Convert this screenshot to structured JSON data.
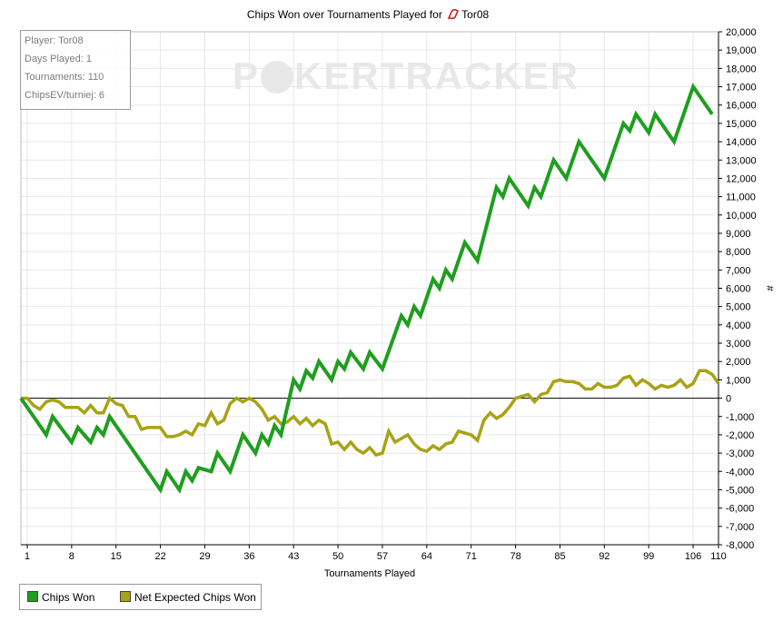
{
  "title_prefix": "Chips Won over Tournaments Played for",
  "player_name": "Tor08",
  "watermark": "POKERTRACKER",
  "info": {
    "player": "Player: Tor08",
    "days": "Days Played: 1",
    "tournaments": "Tournaments: 110",
    "chipsev": "ChipsEV/turniej: 6"
  },
  "legend": {
    "chips_won": "Chips Won",
    "net_expected": "Net Expected Chips Won"
  },
  "colors": {
    "chips_won": "#1f9e1f",
    "net_expected": "#a7a315",
    "grid": "#e8e8e8",
    "badge": "#cc2222"
  },
  "chart_data": {
    "type": "line",
    "xlabel": "Tournaments Played",
    "ylabel": "#",
    "xlim": [
      0,
      110
    ],
    "ylim": [
      -8000,
      20000
    ],
    "xticks": [
      1,
      8,
      15,
      22,
      29,
      36,
      43,
      50,
      57,
      64,
      71,
      78,
      85,
      92,
      99,
      106,
      110
    ],
    "yticks_step": 1000,
    "grid": true,
    "legend_position": "bottom-left",
    "series": [
      {
        "name": "Chips Won",
        "points": [
          [
            0,
            0
          ],
          [
            4,
            -2000
          ],
          [
            5,
            -1000
          ],
          [
            8,
            -2400
          ],
          [
            9,
            -1600
          ],
          [
            11,
            -2400
          ],
          [
            12,
            -1600
          ],
          [
            13,
            -2000
          ],
          [
            14,
            -1000
          ],
          [
            22,
            -5000
          ],
          [
            23,
            -4000
          ],
          [
            25,
            -5000
          ],
          [
            26,
            -4000
          ],
          [
            27,
            -4500
          ],
          [
            28,
            -3800
          ],
          [
            30,
            -4000
          ],
          [
            31,
            -3000
          ],
          [
            33,
            -4000
          ],
          [
            35,
            -2000
          ],
          [
            37,
            -3000
          ],
          [
            38,
            -2000
          ],
          [
            39,
            -2500
          ],
          [
            40,
            -1500
          ],
          [
            41,
            -2000
          ],
          [
            43,
            1000
          ],
          [
            44,
            500
          ],
          [
            45,
            1500
          ],
          [
            46,
            1100
          ],
          [
            47,
            2000
          ],
          [
            49,
            1000
          ],
          [
            50,
            2000
          ],
          [
            51,
            1600
          ],
          [
            52,
            2500
          ],
          [
            54,
            1600
          ],
          [
            55,
            2500
          ],
          [
            57,
            1600
          ],
          [
            60,
            4500
          ],
          [
            61,
            4000
          ],
          [
            62,
            5000
          ],
          [
            63,
            4500
          ],
          [
            65,
            6500
          ],
          [
            66,
            6000
          ],
          [
            67,
            7000
          ],
          [
            68,
            6500
          ],
          [
            70,
            8500
          ],
          [
            72,
            7500
          ],
          [
            75,
            11500
          ],
          [
            76,
            11000
          ],
          [
            77,
            12000
          ],
          [
            80,
            10500
          ],
          [
            81,
            11500
          ],
          [
            82,
            11000
          ],
          [
            84,
            13000
          ],
          [
            86,
            12000
          ],
          [
            88,
            14000
          ],
          [
            92,
            12000
          ],
          [
            95,
            15000
          ],
          [
            96,
            14600
          ],
          [
            97,
            15500
          ],
          [
            99,
            14500
          ],
          [
            100,
            15500
          ],
          [
            103,
            14000
          ],
          [
            106,
            17000
          ],
          [
            109,
            15500
          ]
        ]
      },
      {
        "name": "Net Expected Chips Won",
        "points": [
          [
            0,
            0
          ],
          [
            1,
            0
          ],
          [
            2,
            -400
          ],
          [
            3,
            -600
          ],
          [
            4,
            -200
          ],
          [
            5,
            -100
          ],
          [
            6,
            -200
          ],
          [
            7,
            -500
          ],
          [
            8,
            -500
          ],
          [
            9,
            -500
          ],
          [
            10,
            -800
          ],
          [
            11,
            -400
          ],
          [
            12,
            -800
          ],
          [
            13,
            -800
          ],
          [
            14,
            0
          ],
          [
            15,
            -300
          ],
          [
            16,
            -400
          ],
          [
            17,
            -1000
          ],
          [
            18,
            -1000
          ],
          [
            19,
            -1700
          ],
          [
            20,
            -1600
          ],
          [
            21,
            -1600
          ],
          [
            22,
            -1600
          ],
          [
            23,
            -2100
          ],
          [
            24,
            -2100
          ],
          [
            25,
            -2000
          ],
          [
            26,
            -1800
          ],
          [
            27,
            -2000
          ],
          [
            28,
            -1400
          ],
          [
            29,
            -1500
          ],
          [
            30,
            -800
          ],
          [
            31,
            -1400
          ],
          [
            32,
            -1200
          ],
          [
            33,
            -300
          ],
          [
            34,
            0
          ],
          [
            35,
            -200
          ],
          [
            36,
            0
          ],
          [
            37,
            -200
          ],
          [
            38,
            -600
          ],
          [
            39,
            -1200
          ],
          [
            40,
            -1000
          ],
          [
            41,
            -1400
          ],
          [
            42,
            -1300
          ],
          [
            43,
            -1000
          ],
          [
            44,
            -1400
          ],
          [
            45,
            -1100
          ],
          [
            46,
            -1500
          ],
          [
            47,
            -1200
          ],
          [
            48,
            -1400
          ],
          [
            49,
            -2500
          ],
          [
            50,
            -2400
          ],
          [
            51,
            -2800
          ],
          [
            52,
            -2400
          ],
          [
            53,
            -2800
          ],
          [
            54,
            -3000
          ],
          [
            55,
            -2700
          ],
          [
            56,
            -3100
          ],
          [
            57,
            -3000
          ],
          [
            58,
            -1800
          ],
          [
            59,
            -2400
          ],
          [
            60,
            -2200
          ],
          [
            61,
            -2000
          ],
          [
            62,
            -2500
          ],
          [
            63,
            -2800
          ],
          [
            64,
            -2900
          ],
          [
            65,
            -2600
          ],
          [
            66,
            -2800
          ],
          [
            67,
            -2500
          ],
          [
            68,
            -2400
          ],
          [
            69,
            -1800
          ],
          [
            70,
            -1900
          ],
          [
            71,
            -2000
          ],
          [
            72,
            -2300
          ],
          [
            73,
            -1200
          ],
          [
            74,
            -800
          ],
          [
            75,
            -1100
          ],
          [
            76,
            -900
          ],
          [
            77,
            -500
          ],
          [
            78,
            0
          ],
          [
            79,
            100
          ],
          [
            80,
            200
          ],
          [
            81,
            -200
          ],
          [
            82,
            200
          ],
          [
            83,
            300
          ],
          [
            84,
            900
          ],
          [
            85,
            1000
          ],
          [
            86,
            900
          ],
          [
            87,
            900
          ],
          [
            88,
            800
          ],
          [
            89,
            500
          ],
          [
            90,
            500
          ],
          [
            91,
            800
          ],
          [
            92,
            600
          ],
          [
            93,
            600
          ],
          [
            94,
            700
          ],
          [
            95,
            1100
          ],
          [
            96,
            1200
          ],
          [
            97,
            700
          ],
          [
            98,
            1000
          ],
          [
            99,
            800
          ],
          [
            100,
            500
          ],
          [
            101,
            700
          ],
          [
            102,
            600
          ],
          [
            103,
            700
          ],
          [
            104,
            1000
          ],
          [
            105,
            600
          ],
          [
            106,
            800
          ],
          [
            107,
            1500
          ],
          [
            108,
            1500
          ],
          [
            109,
            1300
          ],
          [
            110,
            800
          ]
        ]
      }
    ]
  }
}
